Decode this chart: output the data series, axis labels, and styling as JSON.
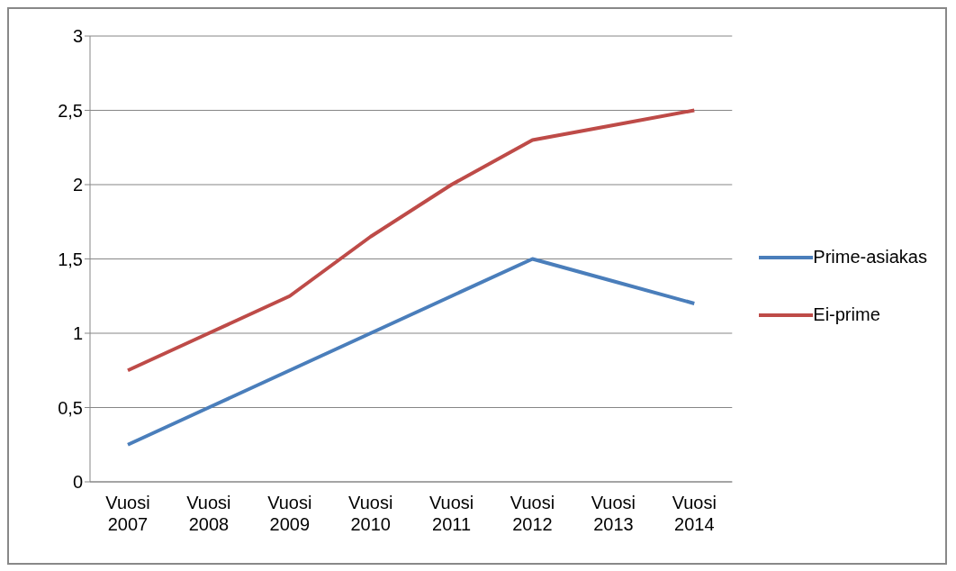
{
  "chart_data": {
    "type": "line",
    "categories": [
      "Vuosi 2007",
      "Vuosi 2008",
      "Vuosi 2009",
      "Vuosi 2010",
      "Vuosi 2011",
      "Vuosi 2012",
      "Vuosi 2013",
      "Vuosi 2014"
    ],
    "series": [
      {
        "name": "Prime-asiakas",
        "color": "#4a7ebb",
        "values": [
          0.25,
          0.5,
          0.75,
          1.0,
          1.25,
          1.5,
          1.35,
          1.2
        ]
      },
      {
        "name": "Ei-prime",
        "color": "#be4b48",
        "values": [
          0.75,
          1.0,
          1.25,
          1.65,
          2.0,
          2.3,
          2.4,
          2.5
        ]
      }
    ],
    "ylim": [
      0,
      3
    ],
    "yticks": [
      0,
      {
        "value": 0.5,
        "label": "0,5"
      },
      1,
      {
        "value": 1.5,
        "label": "1,5"
      },
      2,
      {
        "value": 2.5,
        "label": "2,5"
      },
      3
    ],
    "grid": "y",
    "legend": "right",
    "marker": "none",
    "line_style": "solid"
  }
}
